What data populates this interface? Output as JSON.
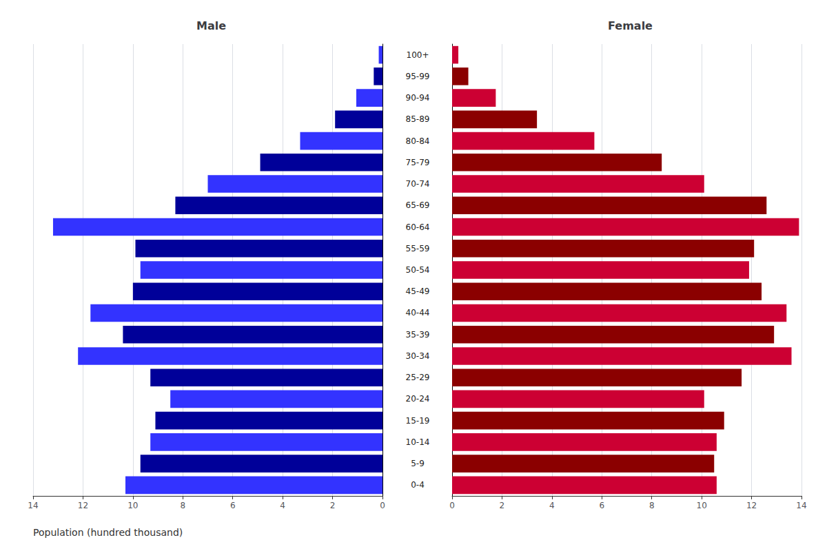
{
  "chart_data": [
    {
      "type": "bar",
      "orientation": "horizontal",
      "title": "Male",
      "xlabel": "Population (hundred thousand)",
      "categories": [
        "0-4",
        "5-9",
        "10-14",
        "15-19",
        "20-24",
        "25-29",
        "30-34",
        "35-39",
        "40-44",
        "45-49",
        "50-54",
        "55-59",
        "60-64",
        "65-69",
        "70-74",
        "75-79",
        "80-84",
        "85-89",
        "90-94",
        "95-99",
        "100+"
      ],
      "values": [
        10.3,
        9.7,
        9.3,
        9.1,
        8.5,
        9.3,
        12.2,
        10.4,
        11.7,
        10.0,
        9.7,
        9.9,
        13.2,
        8.3,
        7.0,
        4.9,
        3.3,
        1.9,
        1.05,
        0.35,
        0.15
      ],
      "colors": [
        "#3333FF",
        "#000099",
        "#3333FF",
        "#000099",
        "#3333FF",
        "#000099",
        "#3333FF",
        "#000099",
        "#3333FF",
        "#000099",
        "#3333FF",
        "#000099",
        "#3333FF",
        "#000099",
        "#3333FF",
        "#000099",
        "#3333FF",
        "#000099",
        "#3333FF",
        "#000099",
        "#3333FF"
      ],
      "xlim": [
        0,
        14
      ],
      "xticks": [
        0,
        2,
        4,
        6,
        8,
        10,
        12,
        14
      ],
      "grid": true
    },
    {
      "type": "bar",
      "orientation": "horizontal",
      "title": "Female",
      "categories": [
        "0-4",
        "5-9",
        "10-14",
        "15-19",
        "20-24",
        "25-29",
        "30-34",
        "35-39",
        "40-44",
        "45-49",
        "50-54",
        "55-59",
        "60-64",
        "65-69",
        "70-74",
        "75-79",
        "80-84",
        "85-89",
        "90-94",
        "95-99",
        "100+"
      ],
      "values": [
        10.6,
        10.5,
        10.6,
        10.9,
        10.1,
        11.6,
        13.6,
        12.9,
        13.4,
        12.4,
        11.9,
        12.1,
        13.9,
        12.6,
        10.1,
        8.4,
        5.7,
        3.4,
        1.75,
        0.65,
        0.25
      ],
      "colors": [
        "#CC0033",
        "#8B0000",
        "#CC0033",
        "#8B0000",
        "#CC0033",
        "#8B0000",
        "#CC0033",
        "#8B0000",
        "#CC0033",
        "#8B0000",
        "#CC0033",
        "#8B0000",
        "#CC0033",
        "#8B0000",
        "#CC0033",
        "#8B0000",
        "#CC0033",
        "#8B0000",
        "#CC0033",
        "#8B0000",
        "#CC0033"
      ],
      "xlim": [
        0,
        14
      ],
      "xticks": [
        0,
        2,
        4,
        6,
        8,
        10,
        12,
        14
      ],
      "grid": true
    }
  ]
}
